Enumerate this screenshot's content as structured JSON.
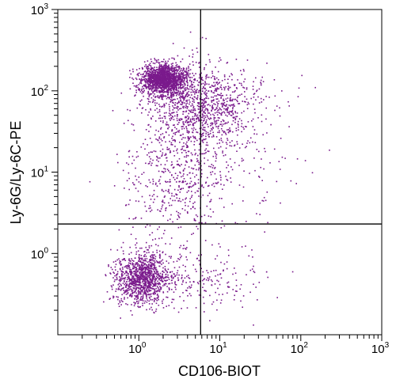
{
  "chart_data": {
    "type": "scatter",
    "xlabel": "CD106-BIOT",
    "ylabel": "Ly-6G/Ly-6C-PE",
    "x_scale": "log",
    "y_scale": "log",
    "xlim": [
      0.1,
      1000
    ],
    "ylim": [
      0.1,
      1000
    ],
    "x_ticks": [
      {
        "base": "10",
        "exp": "0",
        "value": 1
      },
      {
        "base": "10",
        "exp": "1",
        "value": 10
      },
      {
        "base": "10",
        "exp": "2",
        "value": 100
      },
      {
        "base": "10",
        "exp": "3",
        "value": 1000
      }
    ],
    "y_ticks": [
      {
        "base": "10",
        "exp": "0",
        "value": 1
      },
      {
        "base": "10",
        "exp": "1",
        "value": 10
      },
      {
        "base": "10",
        "exp": "2",
        "value": 100
      },
      {
        "base": "10",
        "exp": "3",
        "value": 1000
      }
    ],
    "gates": {
      "x": 5.8,
      "y": 2.3
    },
    "point_color": "#7a1a8c",
    "clusters": [
      {
        "center": [
          2.0,
          140
        ],
        "spread": [
          0.14,
          0.09
        ],
        "count": 1600
      },
      {
        "center": [
          4.5,
          60
        ],
        "spread": [
          0.3,
          0.3
        ],
        "count": 650
      },
      {
        "center": [
          8.0,
          70
        ],
        "spread": [
          0.35,
          0.22
        ],
        "count": 400
      },
      {
        "center": [
          3.0,
          9
        ],
        "spread": [
          0.33,
          0.42
        ],
        "count": 500
      },
      {
        "center": [
          1.1,
          0.5
        ],
        "spread": [
          0.17,
          0.16
        ],
        "count": 1150
      },
      {
        "center": [
          6.0,
          0.5
        ],
        "spread": [
          0.35,
          0.22
        ],
        "count": 200
      },
      {
        "center": [
          15,
          20
        ],
        "spread": [
          0.45,
          0.5
        ],
        "count": 150
      }
    ]
  }
}
